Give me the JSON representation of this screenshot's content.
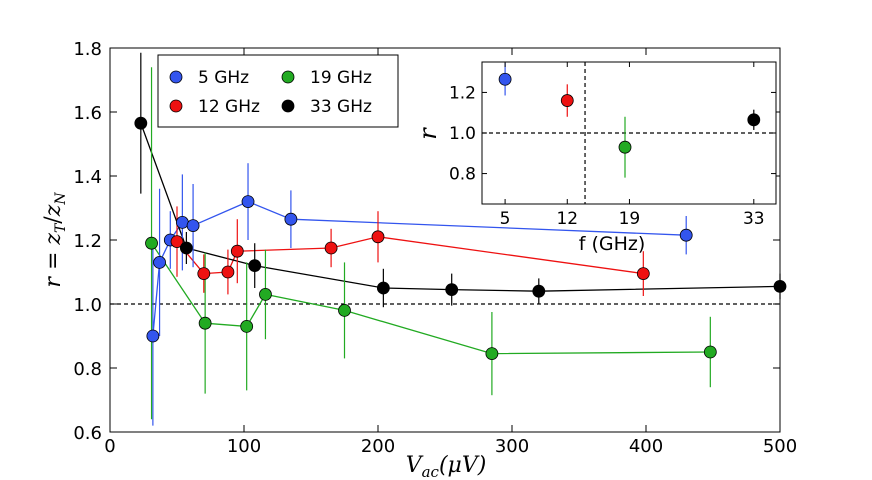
{
  "chart_data": [
    {
      "type": "scatter",
      "title": "",
      "xlabel": "V_ac(μV)",
      "xlabel_parts": {
        "var": "V",
        "sub": "ac",
        "rest": "(μV)"
      },
      "ylabel": "r = z_T / z_N",
      "ylabel_parts": {
        "r": "r",
        "eq": " = ",
        "z1": "z",
        "s1": "T",
        "slash": "/",
        "z2": "z",
        "s2": "N"
      },
      "xlim": [
        0,
        500
      ],
      "ylim": [
        0.6,
        1.8
      ],
      "xticks": [
        0,
        100,
        200,
        300,
        400,
        500
      ],
      "yticks": [
        0.6,
        0.8,
        1.0,
        1.2,
        1.4,
        1.6,
        1.8
      ],
      "ytick_labels": [
        "0.6",
        "0.8",
        "1.0",
        "1.2",
        "1.4",
        "1.6",
        "1.8"
      ],
      "reference_line": 1.0,
      "legend": {
        "placement": "top-left",
        "columns": 2
      },
      "series": [
        {
          "name": "5 GHz",
          "color": "#3355ee",
          "points": [
            {
              "x": 32,
              "y": 0.9,
              "err": 0.28
            },
            {
              "x": 37,
              "y": 1.13,
              "err": 0.23
            },
            {
              "x": 45,
              "y": 1.2,
              "err": 0.09
            },
            {
              "x": 54,
              "y": 1.255,
              "err": 0.15
            },
            {
              "x": 62,
              "y": 1.245,
              "err": 0.13
            },
            {
              "x": 103,
              "y": 1.32,
              "err": 0.12
            },
            {
              "x": 135,
              "y": 1.265,
              "err": 0.09
            },
            {
              "x": 430,
              "y": 1.215,
              "err": 0.06
            }
          ]
        },
        {
          "name": "12 GHz",
          "color": "#ee1111",
          "points": [
            {
              "x": 50,
              "y": 1.195,
              "err": 0.11
            },
            {
              "x": 70,
              "y": 1.095,
              "err": 0.06
            },
            {
              "x": 88,
              "y": 1.1,
              "err": 0.07
            },
            {
              "x": 95,
              "y": 1.165,
              "err": 0.1
            },
            {
              "x": 165,
              "y": 1.175,
              "err": 0.06
            },
            {
              "x": 200,
              "y": 1.21,
              "err": 0.08
            },
            {
              "x": 398,
              "y": 1.095,
              "err": 0.07
            }
          ]
        },
        {
          "name": "19 GHz",
          "color": "#22aa22",
          "points": [
            {
              "x": 31,
              "y": 1.19,
              "err": 0.55
            },
            {
              "x": 71,
              "y": 0.94,
              "err": 0.22
            },
            {
              "x": 102,
              "y": 0.93,
              "err": 0.2
            },
            {
              "x": 116,
              "y": 1.03,
              "err": 0.14
            },
            {
              "x": 175,
              "y": 0.98,
              "err": 0.15
            },
            {
              "x": 285,
              "y": 0.845,
              "err": 0.13
            },
            {
              "x": 448,
              "y": 0.85,
              "err": 0.11
            }
          ]
        },
        {
          "name": "33 GHz",
          "color": "#000000",
          "points": [
            {
              "x": 23,
              "y": 1.565,
              "err": 0.22
            },
            {
              "x": 57,
              "y": 1.175,
              "err": 0.05
            },
            {
              "x": 108,
              "y": 1.12,
              "err": 0.07
            },
            {
              "x": 204,
              "y": 1.05,
              "err": 0.06
            },
            {
              "x": 255,
              "y": 1.045,
              "err": 0.05
            },
            {
              "x": 320,
              "y": 1.04,
              "err": 0.04
            },
            {
              "x": 500,
              "y": 1.055,
              "err": 0.04
            }
          ]
        }
      ]
    },
    {
      "type": "scatter",
      "title": "",
      "inset": true,
      "placement": "top-right",
      "xlabel": "f (GHz)",
      "ylabel": "r",
      "xlim": [
        2.4,
        35.5
      ],
      "ylim": [
        0.65,
        1.35
      ],
      "xticks": [
        5,
        12,
        19,
        33
      ],
      "xtick_labels": [
        "5",
        "12",
        "19",
        "33"
      ],
      "yticks": [
        0.8,
        1.0,
        1.2
      ],
      "ytick_labels": [
        "0.8",
        "1.0",
        "1.2"
      ],
      "reference_line_y": 1.0,
      "reference_line_x": 14,
      "points": [
        {
          "x": 5,
          "y": 1.265,
          "err": 0.08,
          "color": "#3355ee"
        },
        {
          "x": 12,
          "y": 1.16,
          "err": 0.08,
          "color": "#ee1111"
        },
        {
          "x": 18.5,
          "y": 0.93,
          "err": 0.15,
          "color": "#22aa22"
        },
        {
          "x": 33,
          "y": 1.065,
          "err": 0.05,
          "color": "#000000"
        }
      ]
    }
  ]
}
